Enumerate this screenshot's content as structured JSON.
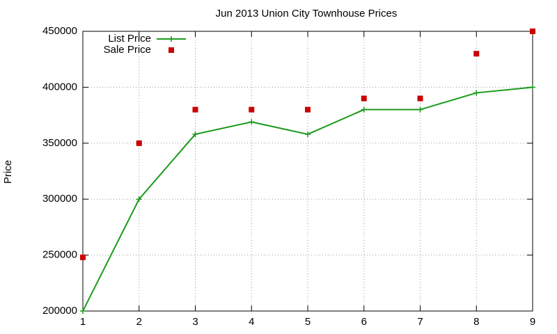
{
  "chart_data": {
    "type": "line",
    "title": "Jun 2013 Union City Townhouse Prices",
    "ylabel": "Price",
    "x": [
      1,
      2,
      3,
      4,
      5,
      6,
      7,
      8,
      9
    ],
    "series": [
      {
        "name": "List Price",
        "color": "#1a9a1a",
        "style": "linespoints",
        "values": [
          200000,
          300000,
          358000,
          369000,
          358000,
          380000,
          380000,
          395000,
          400000
        ]
      },
      {
        "name": "Sale Price",
        "color": "#cc0000",
        "style": "points",
        "values": [
          248000,
          350000,
          380000,
          380000,
          380000,
          390000,
          390000,
          430000,
          450000
        ]
      }
    ],
    "xlim": [
      1,
      9
    ],
    "xticks": [
      1,
      2,
      3,
      4,
      5,
      6,
      7,
      8,
      9
    ],
    "ylim": [
      200000,
      450000
    ],
    "yticks": [
      200000,
      250000,
      300000,
      350000,
      400000,
      450000
    ],
    "grid": true,
    "legend": "top-left"
  }
}
